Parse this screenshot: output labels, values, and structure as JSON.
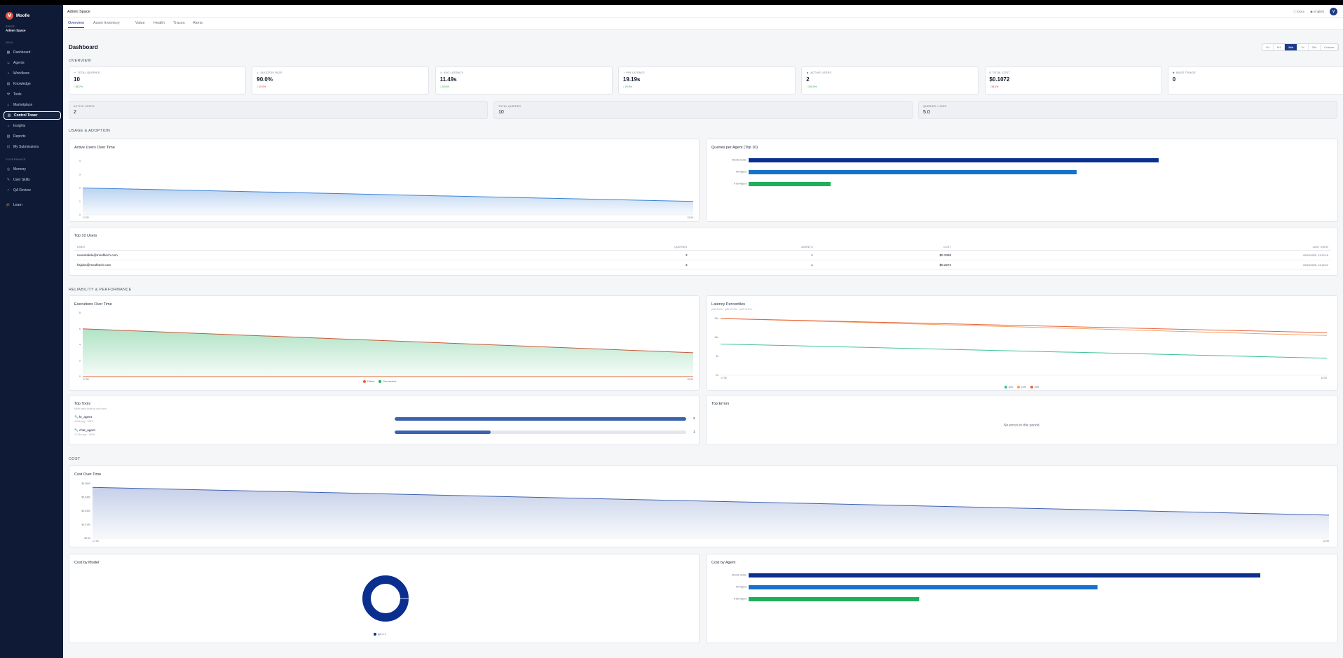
{
  "app": {
    "logo_letter": "M",
    "name": "Moofie"
  },
  "space": {
    "label": "SPACE",
    "name": "Admin Space"
  },
  "nav": {
    "main_label": "MAIN",
    "items": [
      {
        "label": "Dashboard",
        "icon": "grid-icon"
      },
      {
        "label": "Agents",
        "icon": "bot-icon"
      },
      {
        "label": "Workflows",
        "icon": "workflow-icon"
      },
      {
        "label": "Knowledge",
        "icon": "book-icon"
      },
      {
        "label": "Tools",
        "icon": "wrench-icon"
      },
      {
        "label": "Marketplace",
        "icon": "store-icon"
      },
      {
        "label": "Control Tower",
        "icon": "tower-icon"
      },
      {
        "label": "Insights",
        "icon": "bulb-icon"
      },
      {
        "label": "Reports",
        "icon": "report-icon"
      },
      {
        "label": "My Submissions",
        "icon": "inbox-icon"
      }
    ],
    "governance_label": "GOVERNANCE",
    "gov_items": [
      {
        "label": "Memory",
        "icon": "memory-icon"
      },
      {
        "label": "User Skills",
        "icon": "skills-icon"
      },
      {
        "label": "QA Review",
        "icon": "qa-icon"
      }
    ],
    "learn": "Learn"
  },
  "header": {
    "title": "Admin Space",
    "docs": "Docs",
    "lang": "English",
    "avatar": "V"
  },
  "tabs": [
    "Overview",
    "Asset Inventory",
    "Value",
    "Health",
    "Traces",
    "Alerts"
  ],
  "page_title": "Dashboard",
  "ranges": [
    "1H",
    "6H",
    "24h",
    "7d",
    "30d",
    "Custom"
  ],
  "sections": {
    "overview": "OVERVIEW",
    "usage": "USAGE & ADOPTION",
    "reliability": "RELIABILITY & PERFORMANCE",
    "cost": "COST"
  },
  "kpis": [
    {
      "label": "TOTAL QUERIES",
      "value": "10",
      "delta": "↑ 66.7%",
      "trend": "up",
      "icon": "chart-icon"
    },
    {
      "label": "SUCCESS RATE",
      "value": "90.0%",
      "delta": "↓ 10.0%",
      "trend": "down",
      "icon": "check-icon"
    },
    {
      "label": "AVG LATENCY",
      "value": "11.49s",
      "delta": "↓ 28.6%",
      "trend": "up",
      "icon": "clock-icon"
    },
    {
      "label": "P95 LATENCY",
      "value": "19.19s",
      "delta": "↓ 25.9%",
      "trend": "up",
      "icon": "speed-icon"
    },
    {
      "label": "ACTIVE USERS",
      "value": "2",
      "delta": "↑ 100.0%",
      "trend": "up",
      "icon": "users-icon"
    },
    {
      "label": "TOTAL COST",
      "value": "$0.1072",
      "delta": "↑ 35.1%",
      "trend": "down",
      "icon": "dollar-icon"
    },
    {
      "label": "BUGS TRIAGE",
      "value": "0",
      "delta": "–",
      "trend": "muted",
      "icon": "bug-icon"
    }
  ],
  "kpis2": [
    {
      "label": "ACTIVE USERS",
      "value": "2"
    },
    {
      "label": "TOTAL QUERIES",
      "value": "10"
    },
    {
      "label": "QUERIES / USER",
      "value": "5.0"
    }
  ],
  "active_users_chart": {
    "title": "Active Users Over Time"
  },
  "queries_chart": {
    "title": "Queries per Agent (Top 10)"
  },
  "top_users": {
    "title": "Top 10 Users",
    "columns": [
      "USER",
      "QUERIES",
      "AGENTS",
      "COST",
      "LAST SEEN"
    ],
    "rows": [
      [
        "rwumkskdu@moofitech.com",
        "3",
        "1",
        "$0.2356",
        "09/26/2025, 13:22:18"
      ],
      [
        "hsjubn@moofitech.com",
        "3",
        "1",
        "$0.2274",
        "09/26/2025, 13:40:22"
      ]
    ]
  },
  "executions_chart": {
    "title": "Executions Over Time",
    "legend": [
      "Failed",
      "Succeeded"
    ]
  },
  "latency_chart": {
    "title": "Latency Percentiles",
    "subtitle": "p50 9.97s · p95 19.19s · p99 19.97s",
    "legend": [
      "p50",
      "p95",
      "p99"
    ]
  },
  "top_tools": {
    "title": "Top Tools",
    "subtitle": "Most-used tools by call count",
    "items": [
      {
        "name": "kr_agent",
        "meta": "4.29s avg · 100%",
        "count": "2",
        "fraction": 1.0
      },
      {
        "name": "chat_agent",
        "meta": "12.09s avg · 100%",
        "count": "1",
        "fraction": 0.33
      }
    ]
  },
  "top_errors": {
    "title": "Top Errors",
    "empty": "No errors in this period."
  },
  "cost_chart": {
    "title": "Cost Over Time"
  },
  "cost_model": {
    "title": "Cost by Model",
    "legend": "gpt-4.1"
  },
  "cost_agent": {
    "title": "Cost by Agent"
  },
  "colors": {
    "navy": "#0b2f8f",
    "blue": "#1572cc",
    "green": "#1fae5b",
    "orange": "#e8643a",
    "teal": "#3cc29a"
  },
  "chart_data": [
    {
      "type": "area",
      "title": "Active Users Over Time",
      "x": [
        "17:00",
        "12:00"
      ],
      "series": [
        {
          "values": [
            2,
            1
          ]
        }
      ],
      "ylim": [
        0,
        4
      ],
      "yticks": [
        "4",
        "3",
        "2",
        "1",
        "0"
      ],
      "grid": false
    },
    {
      "type": "bar",
      "orientation": "horizontal",
      "title": "Queries per Agent (Top 10)",
      "categories": [
        "Moofie Guide",
        "HR Agent",
        "ITSM Agent"
      ],
      "values": [
        5,
        4,
        1
      ],
      "colors": [
        "#0b2f8f",
        "#1572cc",
        "#1fae5b"
      ]
    },
    {
      "type": "area",
      "title": "Executions Over Time",
      "x": [
        "17:00",
        "12:00"
      ],
      "ylim": [
        0,
        8
      ],
      "yticks": [
        "8",
        "6",
        "4",
        "2",
        "0"
      ],
      "series": [
        {
          "name": "Failed",
          "values": [
            0,
            0
          ]
        },
        {
          "name": "Succeeded",
          "values": [
            6,
            3
          ]
        }
      ]
    },
    {
      "type": "line",
      "title": "Latency Percentiles",
      "x": [
        "17:00",
        "12:00"
      ],
      "yticks": [
        "15s",
        "10s",
        "5s",
        "0s"
      ],
      "ylim": [
        0,
        20
      ],
      "series": [
        {
          "name": "p50",
          "values": [
            11,
            6
          ]
        },
        {
          "name": "p95",
          "values": [
            20,
            14
          ]
        },
        {
          "name": "p99",
          "values": [
            20,
            15
          ]
        }
      ]
    },
    {
      "type": "area",
      "title": "Cost Over Time",
      "x": [
        "17:00",
        "12:00"
      ],
      "yticks": [
        "$0.0600",
        "$0.0450",
        "$0.0300",
        "$0.0150",
        "$0.00"
      ],
      "ylim": [
        0,
        0.06
      ],
      "series": [
        {
          "values": [
            0.056,
            0.0255
          ]
        }
      ]
    },
    {
      "type": "pie",
      "title": "Cost by Model",
      "categories": [
        "gpt-4.1"
      ],
      "values": [
        0.1072
      ]
    },
    {
      "type": "bar",
      "orientation": "horizontal",
      "title": "Cost by Agent",
      "categories": [
        "Moofie Guide",
        "HR Agent",
        "ITSM Agent"
      ],
      "values": [
        0.066,
        0.045,
        0.022
      ],
      "colors": [
        "#0b2f8f",
        "#1572cc",
        "#1fae5b"
      ]
    }
  ]
}
